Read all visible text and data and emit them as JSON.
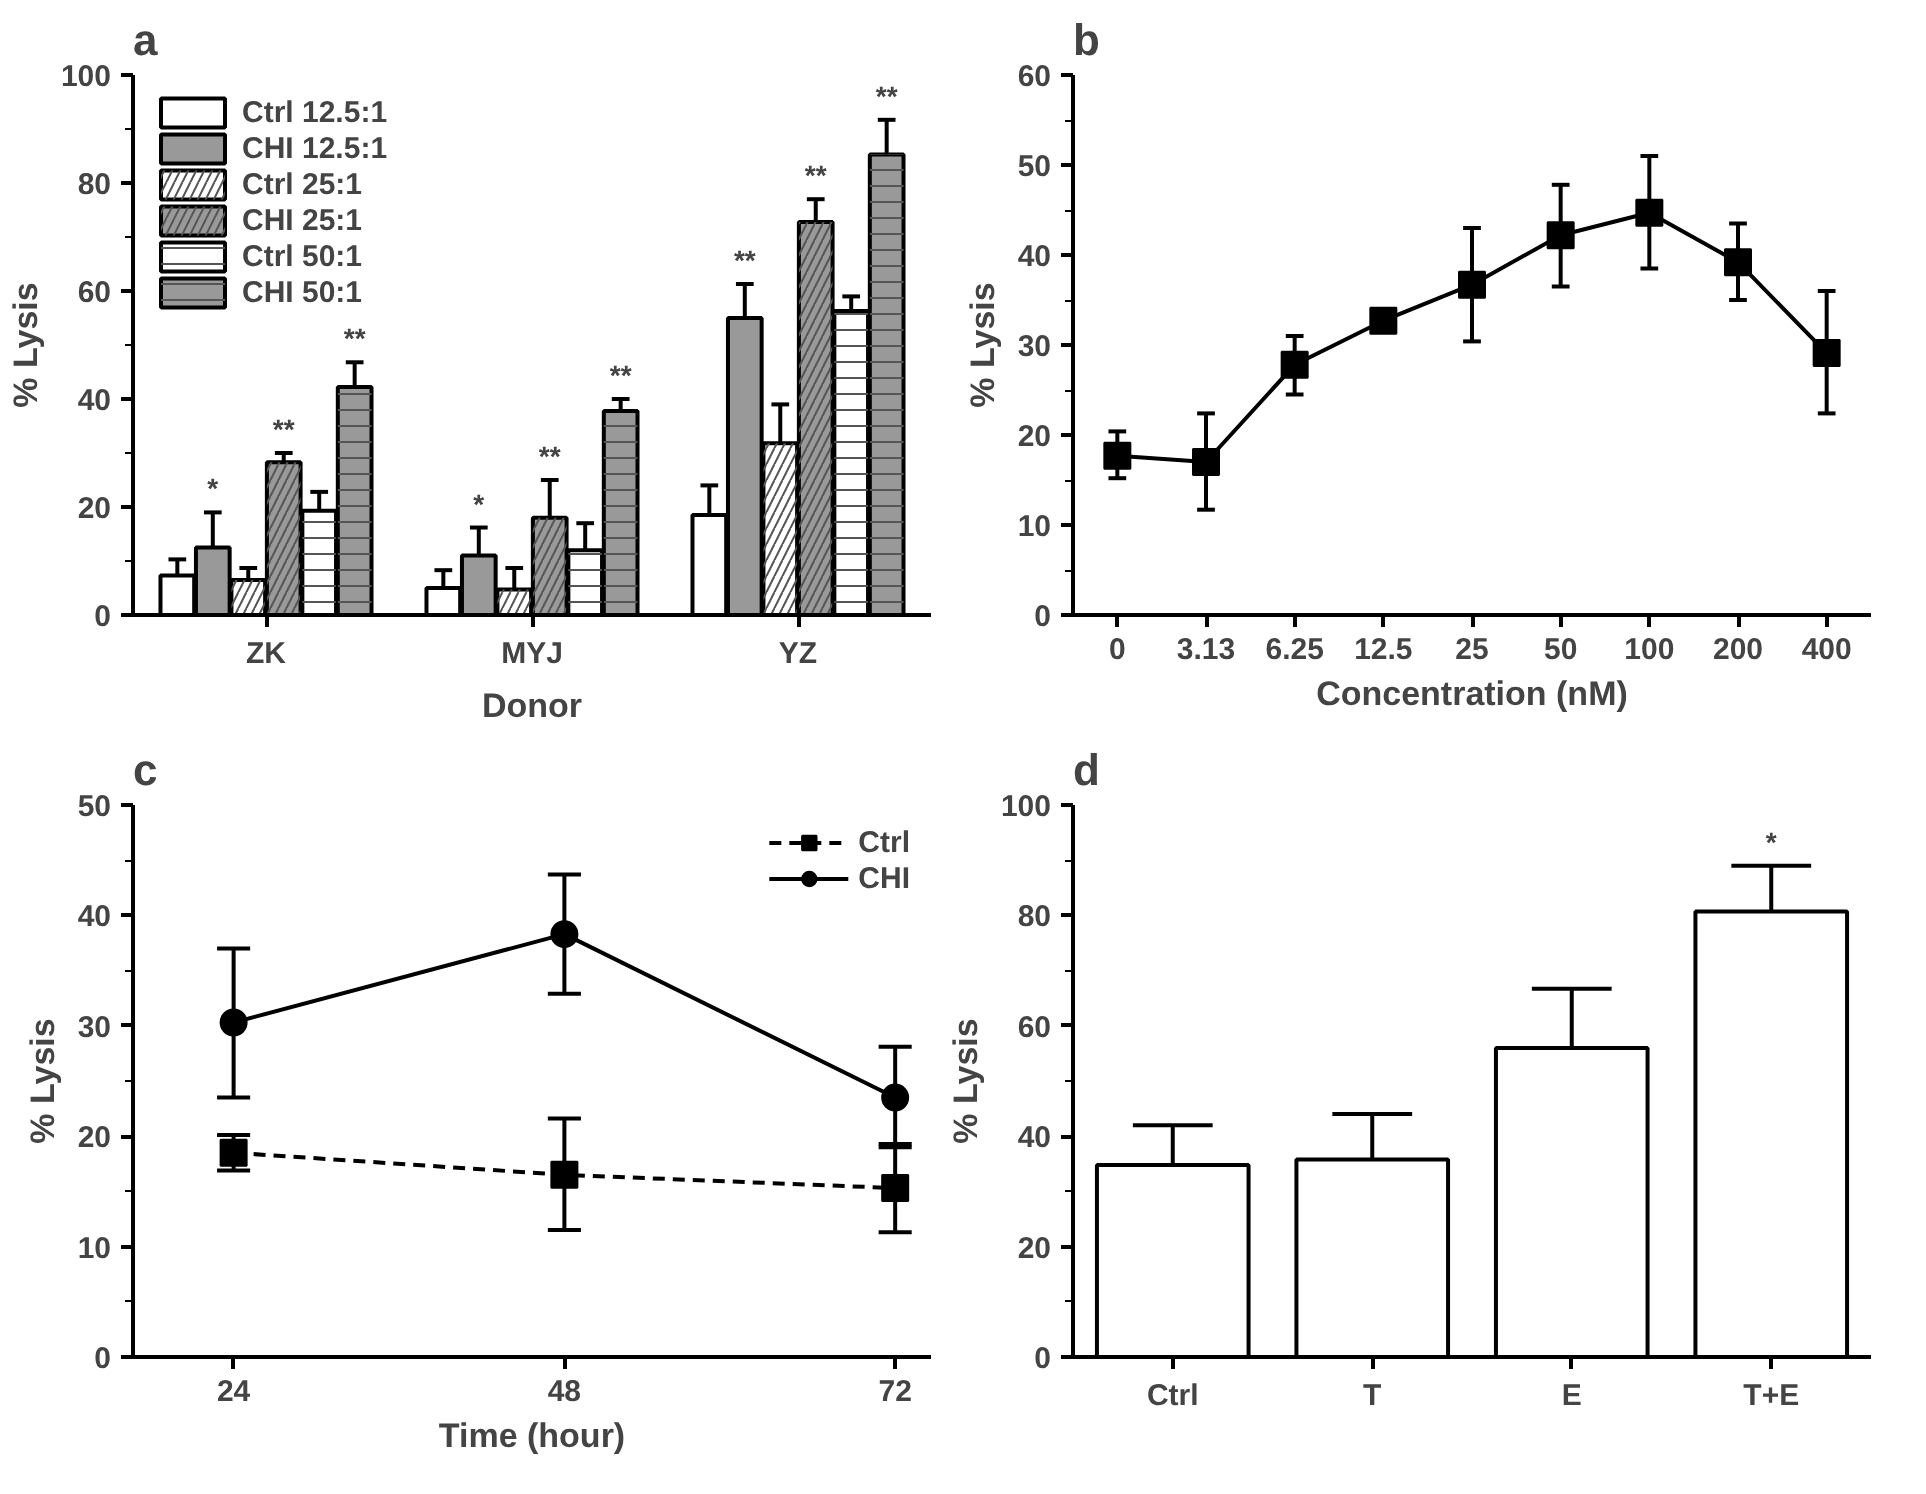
{
  "chart_data": [
    {
      "type": "bar",
      "title": "a",
      "xlabel": "Donor",
      "ylabel": "% Lysis",
      "categories": [
        "ZK",
        "MYJ",
        "YZ"
      ],
      "ylim": [
        0,
        100
      ],
      "yticks": [
        0,
        20,
        40,
        60,
        80,
        100
      ],
      "legend": "top left",
      "grid": false,
      "series": [
        {
          "name": "Ctrl 12.5:1",
          "color": "#ffffff",
          "values": [
            7.3,
            5,
            18.5
          ],
          "errors": [
            [
              7.3,
              10.3
            ],
            [
              5,
              8.3
            ],
            [
              18.5,
              24
            ]
          ]
        },
        {
          "name": "CHI 12.5:1",
          "color": "#999999",
          "value_labels": [
            "*",
            "*",
            "**"
          ],
          "values": [
            12.5,
            11,
            55
          ],
          "errors": [
            [
              12.5,
              19
            ],
            [
              11,
              16.2
            ],
            [
              55,
              61.3
            ]
          ]
        },
        {
          "name": "Ctrl 25:1",
          "color": "#ffffff",
          "values": [
            6.5,
            4.7,
            31.8
          ],
          "errors": [
            [
              6.5,
              8.7
            ],
            [
              4.7,
              8.7
            ],
            [
              31.8,
              39
            ]
          ]
        },
        {
          "name": "CHI 25:1",
          "color": "#999999",
          "value_labels": [
            "**",
            "**",
            "**"
          ],
          "values": [
            28.3,
            18,
            72.8
          ],
          "errors": [
            [
              28.3,
              30
            ],
            [
              18,
              25
            ],
            [
              72.8,
              77
            ]
          ]
        },
        {
          "name": "Ctrl 50:1",
          "color": "#ffffff",
          "values": [
            19.3,
            12,
            56.3
          ],
          "errors": [
            [
              19.3,
              22.8
            ],
            [
              12,
              17
            ],
            [
              56.3,
              59
            ]
          ]
        },
        {
          "name": "CHI 50:1",
          "color": "#999999",
          "value_labels": [
            "**",
            "**",
            "**"
          ],
          "values": [
            42.2,
            37.8,
            85.3
          ],
          "errors": [
            [
              42.2,
              46.8
            ],
            [
              37.8,
              40
            ],
            [
              85.3,
              91.7
            ]
          ]
        }
      ]
    },
    {
      "type": "line",
      "title": "b",
      "xlabel": "Concentration (nM)",
      "ylabel": "% Lysis",
      "categories": [
        "0",
        "3.13",
        "6.25",
        "12.5",
        "25",
        "50",
        "100",
        "200",
        "400"
      ],
      "ylim": [
        0,
        60
      ],
      "yticks": [
        0,
        10,
        20,
        30,
        40,
        50,
        60
      ],
      "grid": false,
      "marker": "square",
      "line_style": "solid",
      "series": [
        {
          "color": "#000000",
          "values": [
            17.7,
            17,
            27.8,
            32.7,
            36.7,
            42.2,
            44.7,
            39.2,
            29.1
          ],
          "errors": [
            [
              15.2,
              20.4
            ],
            [
              11.7,
              22.4
            ],
            [
              24.5,
              31
            ],
            [
              31.7,
              34
            ],
            [
              30.4,
              43
            ],
            [
              36.5,
              47.8
            ],
            [
              38.5,
              51
            ],
            [
              35,
              43.5
            ],
            [
              22.4,
              36
            ]
          ]
        }
      ]
    },
    {
      "type": "line",
      "title": "c",
      "xlabel": "Time (hour)",
      "ylabel": "% Lysis",
      "x": [
        24,
        48,
        72
      ],
      "xlim": [
        16.7,
        74.6
      ],
      "xticks": [
        24,
        48,
        72
      ],
      "ylim": [
        0,
        50
      ],
      "yticks": [
        0,
        10,
        20,
        30,
        40,
        50
      ],
      "grid": false,
      "legend": "top right",
      "series": [
        {
          "name": "Ctrl",
          "color": "#000000",
          "marker": "square",
          "line_style": "dashed",
          "values": [
            18.5,
            16.5,
            15.3
          ],
          "errors": [
            [
              16.9,
              20.1
            ],
            [
              11.5,
              21.6
            ],
            [
              11.3,
              19.3
            ]
          ]
        },
        {
          "name": "CHI",
          "color": "#000000",
          "marker": "circle",
          "line_style": "solid",
          "values": [
            30.3,
            38.3,
            23.5
          ],
          "errors": [
            [
              23.5,
              37
            ],
            [
              32.9,
              43.7
            ],
            [
              19,
              28.1
            ]
          ]
        }
      ]
    },
    {
      "type": "bar",
      "title": "d",
      "ylabel": "% Lysis",
      "categories": [
        "Ctrl",
        "T",
        "E",
        "T+E"
      ],
      "ylim": [
        0,
        100
      ],
      "yticks": [
        0,
        20,
        40,
        60,
        80,
        100
      ],
      "grid": false,
      "series": [
        {
          "color": "#ffffff",
          "value_labels": [
            null,
            null,
            null,
            "*"
          ],
          "values": [
            34.8,
            35.8,
            56,
            80.7
          ],
          "errors": [
            [
              34.8,
              42
            ],
            [
              35.8,
              44
            ],
            [
              56,
              66.7
            ],
            [
              80.7,
              89
            ]
          ]
        }
      ]
    }
  ]
}
